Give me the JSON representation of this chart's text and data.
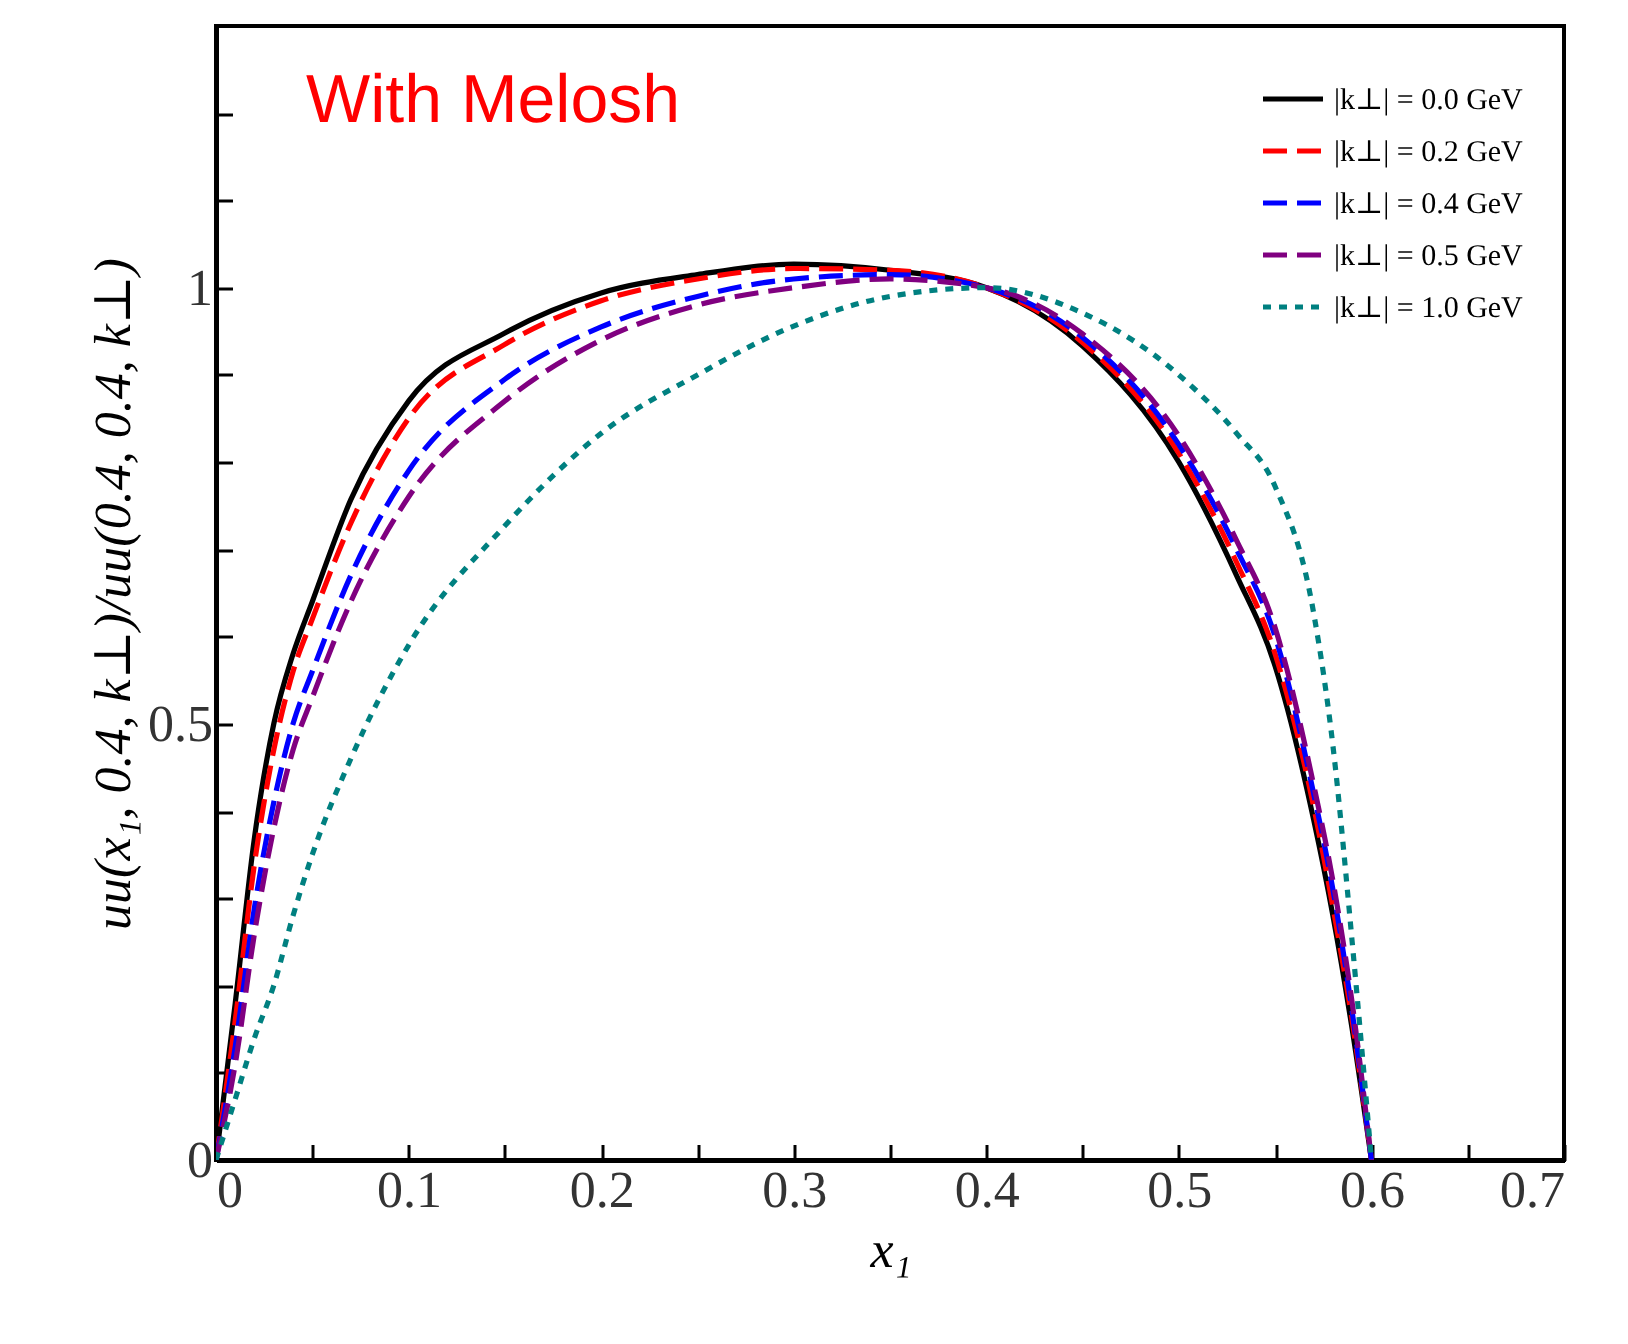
{
  "chart_data": {
    "type": "line",
    "xlabel": "x₁",
    "ylabel": "uu(x₁, 0.4, k⊥)/uu(0.4, 0.4, k⊥)",
    "annotations": [
      "With Melosh"
    ],
    "x": [
      0,
      0.01,
      0.02,
      0.03,
      0.04,
      0.05,
      0.07,
      0.1,
      0.15,
      0.2,
      0.25,
      0.3,
      0.35,
      0.4,
      0.45,
      0.5,
      0.53,
      0.55,
      0.57,
      0.58,
      0.59,
      0.6
    ],
    "series": [
      {
        "name": "|k⊥| = 0.0 GeV",
        "color": "#000000",
        "line_style": "solid",
        "values": [
          0,
          0.18,
          0.37,
          0.5,
          0.58,
          0.64,
          0.757,
          0.87,
          0.948,
          0.994,
          1.015,
          1.027,
          1.02,
          1.0,
          0.933,
          0.8,
          0.67,
          0.566,
          0.39,
          0.28,
          0.15,
          0
        ]
      },
      {
        "name": "|k⊥| = 0.2 GeV",
        "color": "#ff0000",
        "line_style": "dashed",
        "values": [
          0,
          0.16,
          0.34,
          0.47,
          0.56,
          0.62,
          0.73,
          0.85,
          0.935,
          0.985,
          1.01,
          1.022,
          1.02,
          1.0,
          0.937,
          0.81,
          0.685,
          0.58,
          0.405,
          0.29,
          0.16,
          0
        ]
      },
      {
        "name": "|k⊥| = 0.4 GeV",
        "color": "#0000ff",
        "line_style": "dashed",
        "values": [
          0,
          0.13,
          0.29,
          0.41,
          0.5,
          0.56,
          0.67,
          0.79,
          0.895,
          0.955,
          0.99,
          1.01,
          1.015,
          1.0,
          0.943,
          0.82,
          0.7,
          0.6,
          0.42,
          0.31,
          0.17,
          0
        ]
      },
      {
        "name": "|k⊥| = 0.5 GeV",
        "color": "#800080",
        "line_style": "dashed",
        "values": [
          0,
          0.11,
          0.26,
          0.38,
          0.47,
          0.53,
          0.64,
          0.76,
          0.87,
          0.94,
          0.98,
          1.0,
          1.01,
          1.0,
          0.947,
          0.83,
          0.71,
          0.61,
          0.43,
          0.32,
          0.18,
          0
        ]
      },
      {
        "name": "|k⊥| = 1.0 GeV",
        "color": "#008080",
        "line_style": "dotted",
        "values": [
          0,
          0.07,
          0.14,
          0.2,
          0.28,
          0.35,
          0.46,
          0.59,
          0.727,
          0.833,
          0.9,
          0.956,
          0.99,
          1.0,
          0.971,
          0.9,
          0.833,
          0.772,
          0.627,
          0.475,
          0.25,
          0
        ]
      }
    ],
    "xlim": [
      0,
      0.7
    ],
    "xticks": [
      0,
      {
        "value": 0.05,
        "label": null
      },
      0.1,
      {
        "value": 0.15,
        "label": null
      },
      0.2,
      {
        "value": 0.25,
        "label": null
      },
      0.3,
      {
        "value": 0.35,
        "label": null
      },
      0.4,
      {
        "value": 0.45,
        "label": null
      },
      0.5,
      {
        "value": 0.55,
        "label": null
      },
      0.6,
      {
        "value": 0.65,
        "label": null
      },
      0.7
    ],
    "ylim": [
      0,
      1.3
    ],
    "yticks": [
      0,
      {
        "value": 0.1,
        "label": null
      },
      {
        "value": 0.2,
        "label": null
      },
      {
        "value": 0.3,
        "label": null
      },
      {
        "value": 0.4,
        "label": null
      },
      0.5,
      {
        "value": 0.6,
        "label": null
      },
      {
        "value": 0.7,
        "label": null
      },
      {
        "value": 0.8,
        "label": null
      },
      {
        "value": 0.9,
        "label": null
      },
      1,
      {
        "value": 1.1,
        "label": null
      },
      {
        "value": 1.2,
        "label": null
      }
    ],
    "grid": false,
    "legend": "top right",
    "marker": "none"
  }
}
